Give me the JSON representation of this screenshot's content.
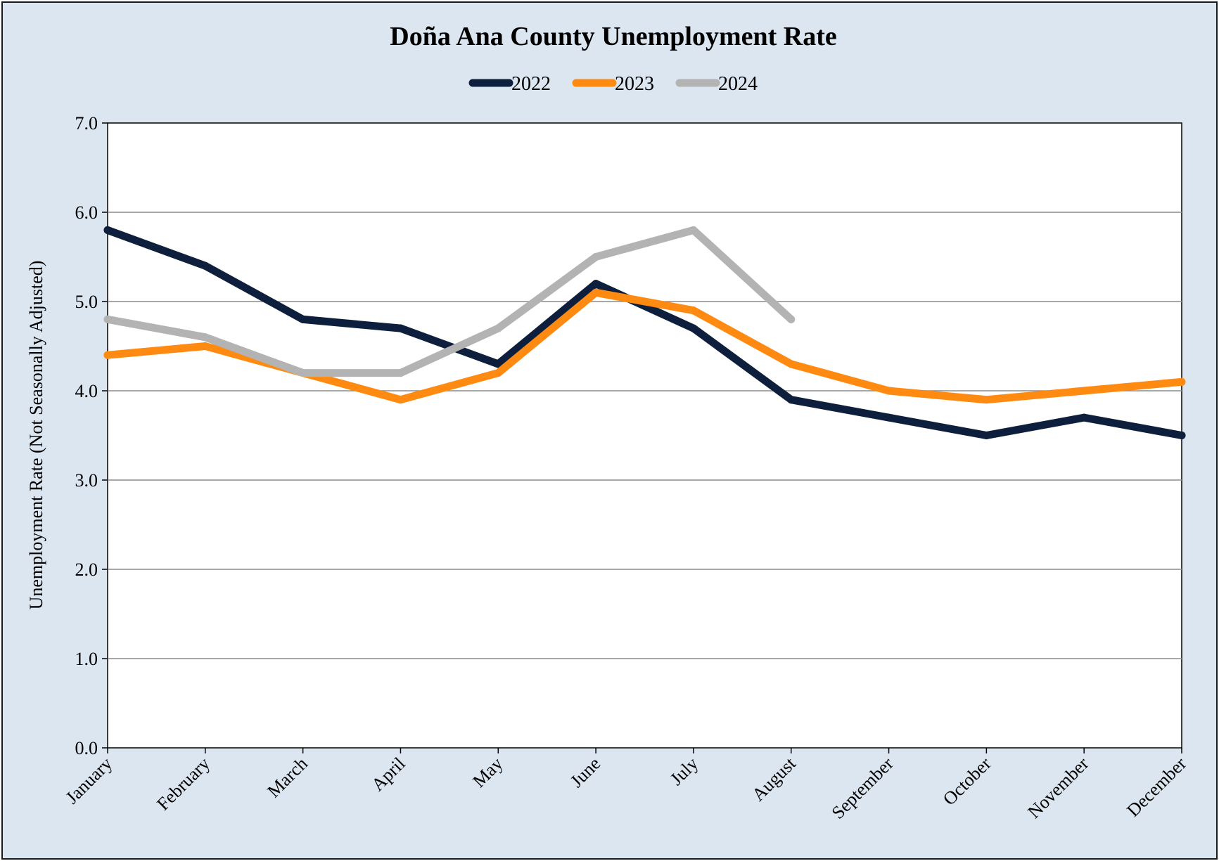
{
  "chart_data": {
    "type": "line",
    "title": "Doña Ana County Unemployment Rate",
    "xlabel": "",
    "ylabel": "Unemployment Rate (Not Seasonally Adjusted)",
    "categories": [
      "January",
      "February",
      "March",
      "April",
      "May",
      "June",
      "July",
      "August",
      "September",
      "October",
      "November",
      "December"
    ],
    "ylim": [
      0,
      7
    ],
    "yticks": [
      "0.0",
      "1.0",
      "2.0",
      "3.0",
      "4.0",
      "5.0",
      "6.0",
      "7.0"
    ],
    "grid": "horizontal",
    "legend_position": "top-center",
    "series": [
      {
        "name": "2022",
        "color": "#0d1f3c",
        "values": [
          5.8,
          5.4,
          4.8,
          4.7,
          4.3,
          5.2,
          4.7,
          3.9,
          3.7,
          3.5,
          3.7,
          3.5
        ]
      },
      {
        "name": "2023",
        "color": "#ff8a12",
        "values": [
          4.4,
          4.5,
          4.2,
          3.9,
          4.2,
          5.1,
          4.9,
          4.3,
          4.0,
          3.9,
          4.0,
          4.1
        ]
      },
      {
        "name": "2024",
        "color": "#b3b3b3",
        "values": [
          4.8,
          4.6,
          4.2,
          4.2,
          4.7,
          5.5,
          5.8,
          4.8,
          null,
          null,
          null,
          null
        ]
      }
    ]
  }
}
